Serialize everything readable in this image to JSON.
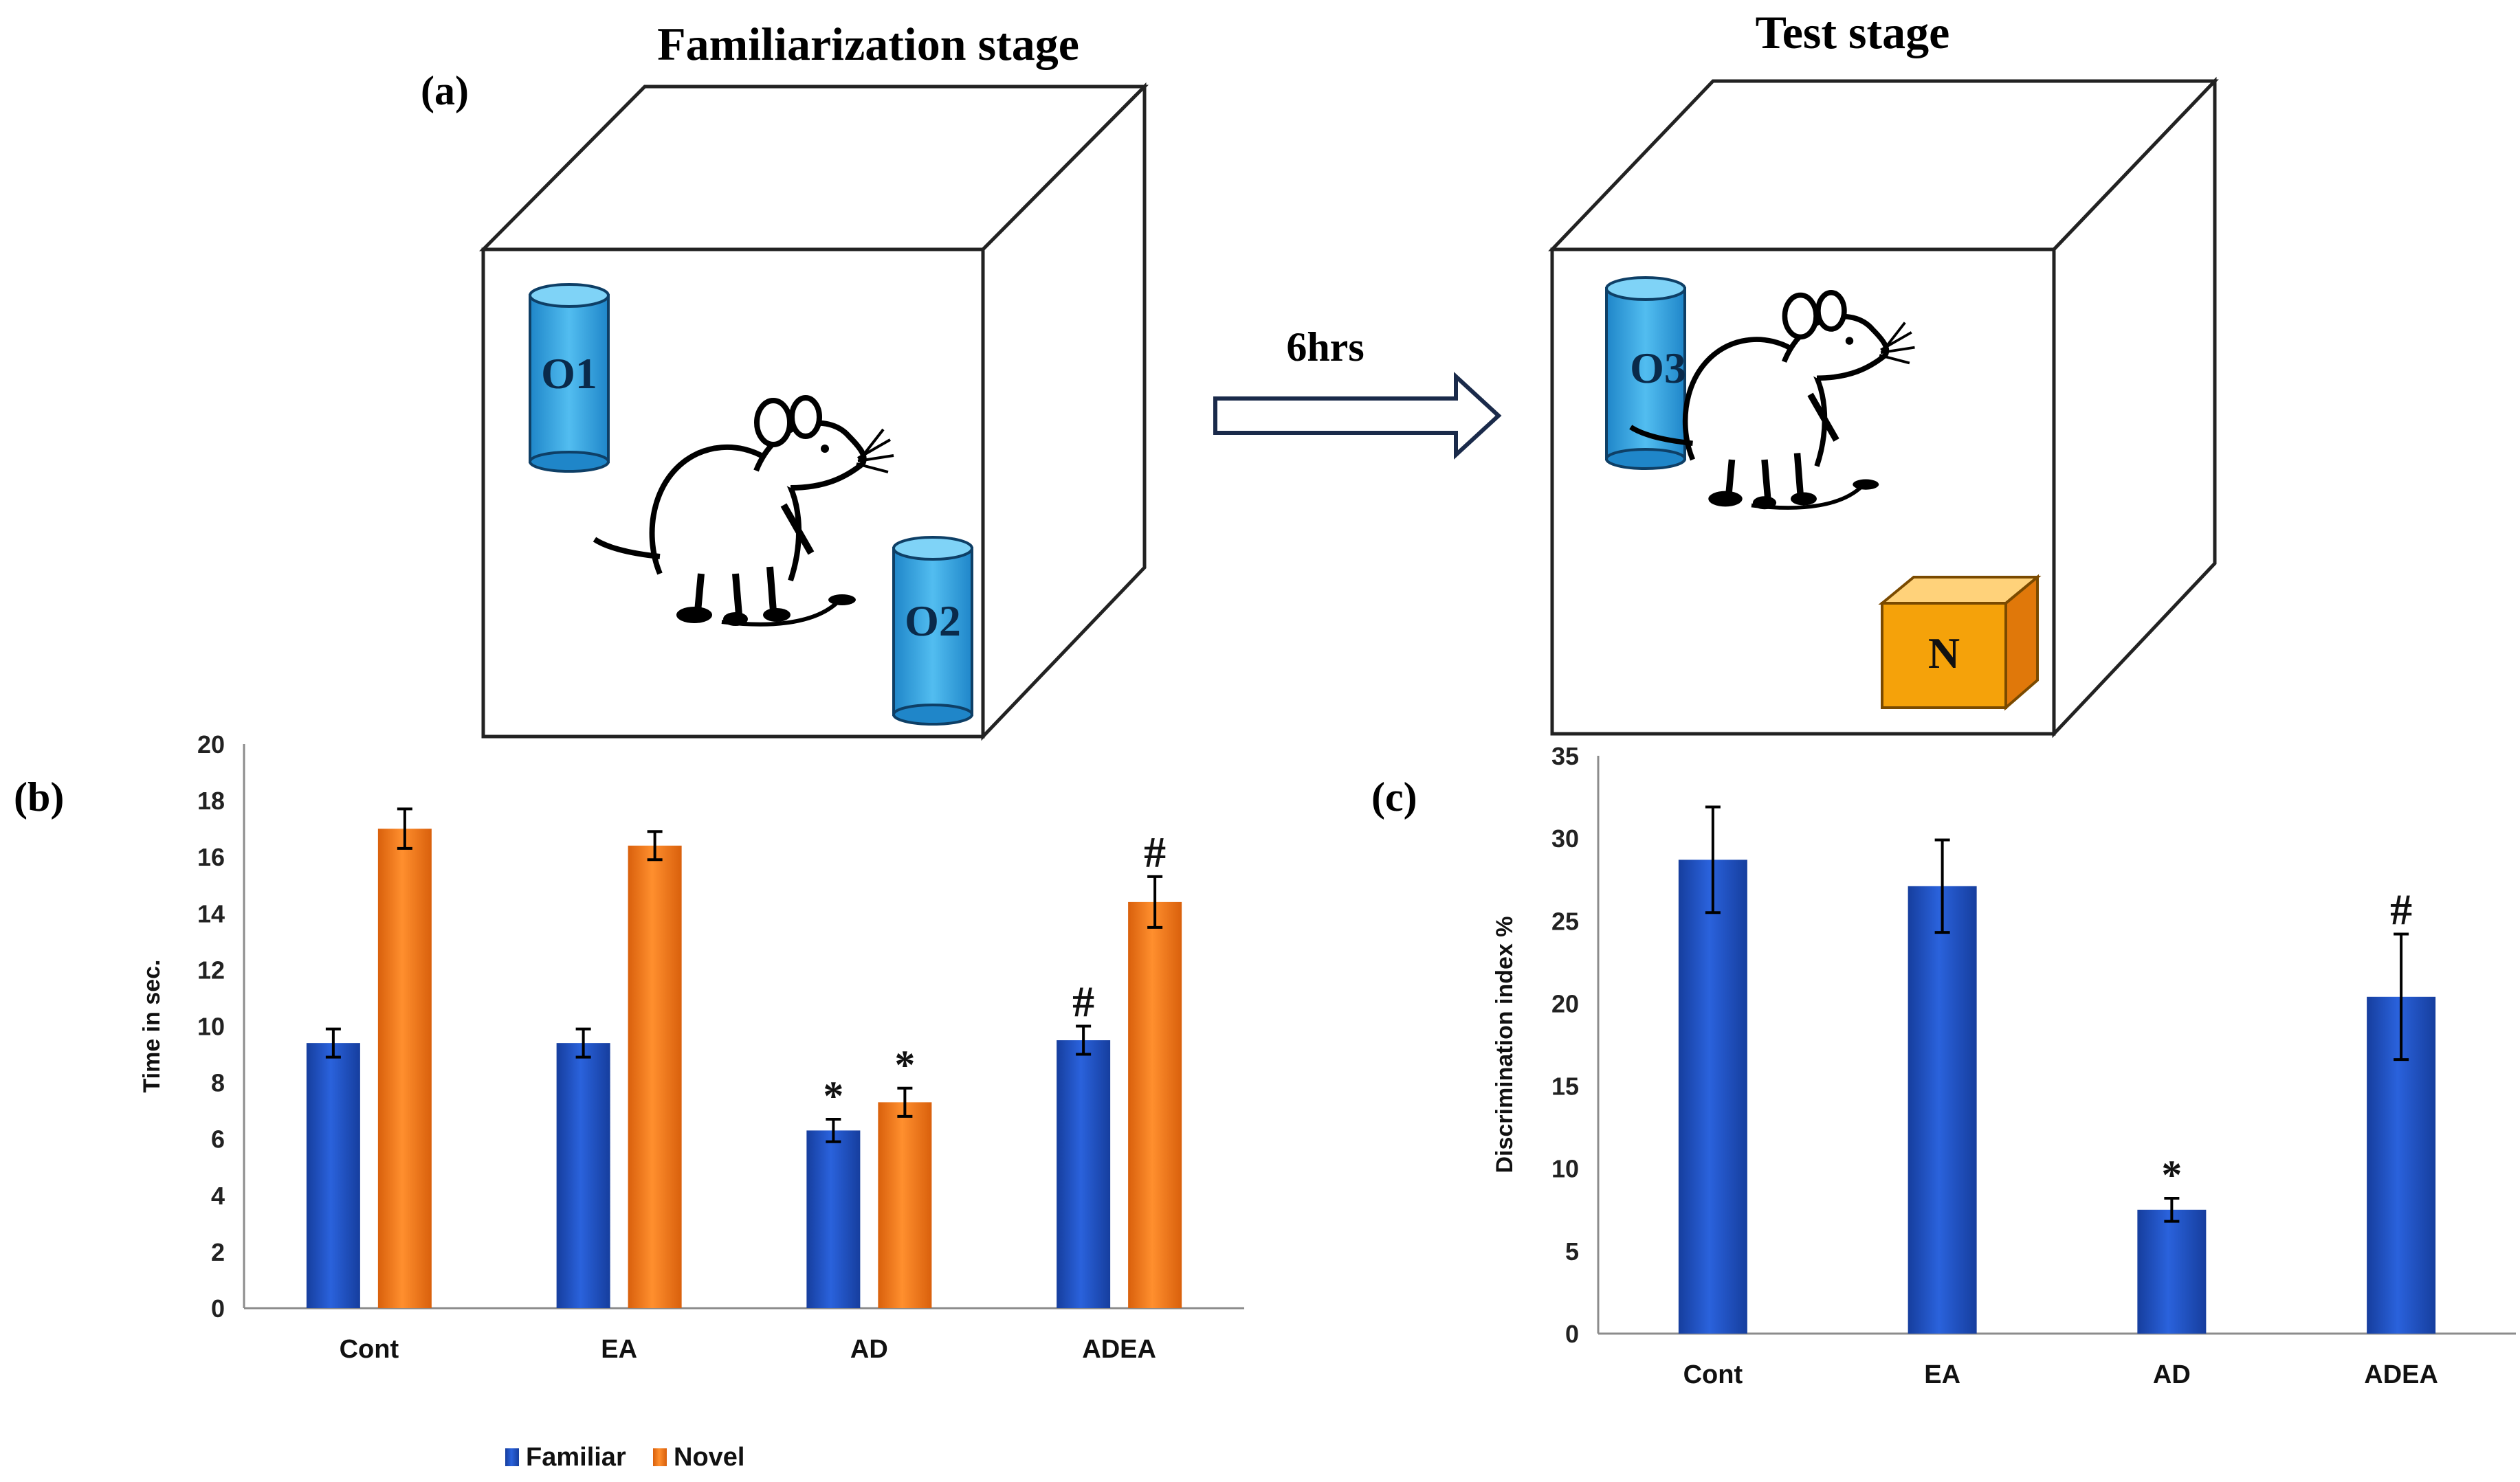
{
  "panel_labels": {
    "a": "(a)",
    "b": "(b)",
    "c": "(c)"
  },
  "diagram": {
    "familiarization_title": "Familiarization stage",
    "test_title": "Test stage",
    "arrow_label": "6hrs",
    "objects": {
      "o1": "O1",
      "o2": "O2",
      "o3": "O3",
      "n": "N"
    }
  },
  "colors": {
    "familiar": "#1f4fc2",
    "novel": "#f07a1c",
    "cylinder": "#3aa6e0",
    "box": "#f5a20a"
  },
  "chart_data": [
    {
      "type": "bar",
      "panel": "b",
      "title": "",
      "xlabel": "",
      "ylabel": "Time in sec.",
      "ylim": [
        0,
        20
      ],
      "yticks": [
        "0",
        "2",
        "4",
        "6",
        "8",
        "10",
        "12",
        "14",
        "16",
        "18",
        "20"
      ],
      "categories": [
        "Cont",
        "EA",
        "AD",
        "ADEA"
      ],
      "series": [
        {
          "name": "Familiar",
          "values": [
            9.4,
            9.4,
            6.3,
            9.5
          ],
          "errors": [
            0.5,
            0.5,
            0.4,
            0.5
          ],
          "marks": [
            "",
            "",
            "*",
            "#"
          ]
        },
        {
          "name": "Novel",
          "values": [
            17.0,
            16.4,
            7.3,
            14.4
          ],
          "errors": [
            0.7,
            0.5,
            0.5,
            0.9
          ],
          "marks": [
            "",
            "",
            "*",
            "#"
          ]
        }
      ],
      "legend": [
        "Familiar",
        "Novel"
      ],
      "legend_position": "bottom"
    },
    {
      "type": "bar",
      "panel": "c",
      "title": "",
      "xlabel": "",
      "ylabel": "Discrimination index %",
      "ylim": [
        0,
        35
      ],
      "yticks": [
        "0",
        "5",
        "10",
        "15",
        "20",
        "25",
        "30",
        "35"
      ],
      "categories": [
        "Cont",
        "EA",
        "AD",
        "ADEA"
      ],
      "series": [
        {
          "name": "Discrimination index",
          "values": [
            28.7,
            27.1,
            7.5,
            20.4
          ],
          "errors": [
            3.2,
            2.8,
            0.7,
            3.8
          ],
          "marks": [
            "",
            "",
            "*",
            "#"
          ]
        }
      ]
    }
  ]
}
